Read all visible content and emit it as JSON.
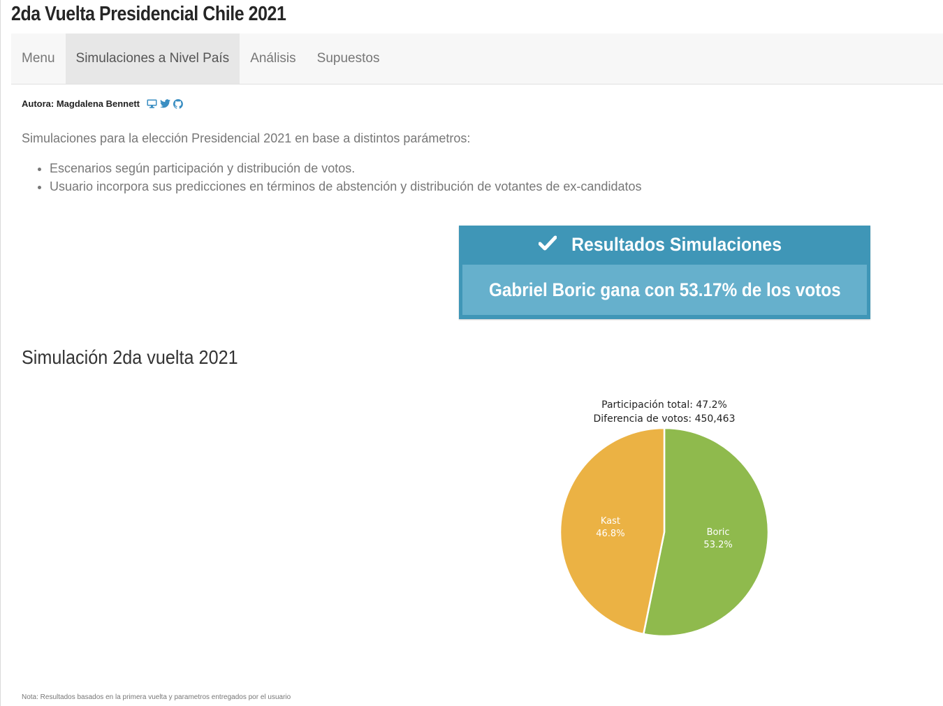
{
  "header": {
    "title": "2da Vuelta Presidencial Chile 2021"
  },
  "nav": {
    "tabs": [
      {
        "label": "Menu",
        "active": false
      },
      {
        "label": "Simulaciones a Nivel País",
        "active": true
      },
      {
        "label": "Análisis",
        "active": false
      },
      {
        "label": "Supuestos",
        "active": false
      }
    ]
  },
  "author": {
    "label": "Autora: Magdalena Bennett",
    "icons": [
      "desktop-icon",
      "twitter-icon",
      "github-icon"
    ]
  },
  "intro": {
    "text": "Simulaciones para la elección Presidencial 2021 en base a distintos parámetros:",
    "bullets": [
      "Escenarios según participación y distribución de votos.",
      "Usuario incorpora sus predicciones en términos de abstención y distribución de votantes de ex-candidatos"
    ]
  },
  "results": {
    "header": "Resultados Simulaciones",
    "message": "Gabriel Boric gana con 53.17% de los votos",
    "colors": {
      "header_bg": "#3f96b7",
      "body_bg": "#66b0cc"
    }
  },
  "section": {
    "title": "Simulación 2da vuelta 2021"
  },
  "chart_data": {
    "type": "pie",
    "annotations": [
      "Participación total: 47.2%",
      "Diferencia de votos: 450,463"
    ],
    "slices": [
      {
        "label": "Boric",
        "value": 53.2,
        "display": "53.2%",
        "color": "#8fba4d"
      },
      {
        "label": "Kast",
        "value": 46.8,
        "display": "46.8%",
        "color": "#ebb244"
      }
    ]
  },
  "footnote": "Nota: Resultados basados en la primera vuelta y parametros entregados por el usuario"
}
